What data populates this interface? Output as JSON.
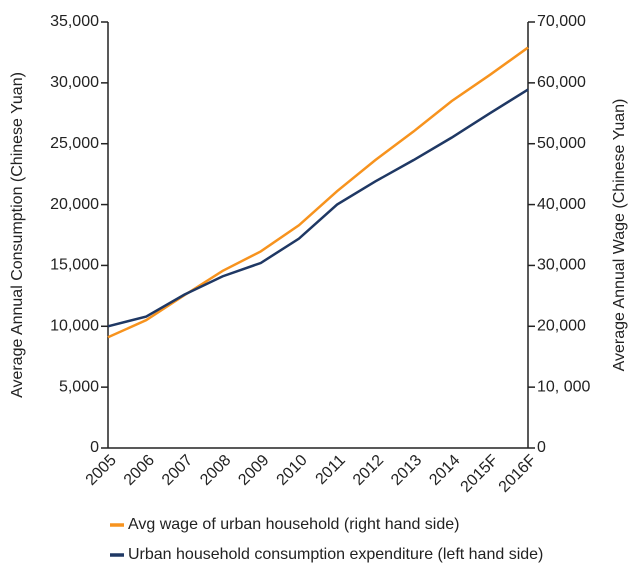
{
  "chart_data": {
    "type": "line",
    "y_label": "Average Annual Consumption (Chinese Yuan)",
    "y2_label": "Average Annual Wage (Chinese Yuan)",
    "categories": [
      "2005",
      "2006",
      "2007",
      "2008",
      "2009",
      "2010",
      "2011",
      "2012",
      "2013",
      "2014",
      "2015F",
      "2016F"
    ],
    "series": [
      {
        "name": "Avg wage of urban household (right hand side)",
        "color": "#f7931e",
        "axis": "y2",
        "values": [
          18200,
          21000,
          25100,
          29100,
          32300,
          36600,
          42200,
          47300,
          52000,
          57000,
          61300,
          65800
        ]
      },
      {
        "name": "Urban household consumption expenditure (left hand side)",
        "color": "#1f3864",
        "values": [
          10000,
          10800,
          12600,
          14100,
          15200,
          17200,
          20000,
          21900,
          23650,
          25500,
          27500,
          29450
        ]
      }
    ],
    "ylim": [
      0,
      35000
    ],
    "yticks": [
      0,
      {
        "value": 5000,
        "label": "5,000"
      },
      {
        "value": 10000,
        "label": "10,000"
      },
      {
        "value": 15000,
        "label": "15,000"
      },
      {
        "value": 20000,
        "label": "20,000"
      },
      {
        "value": 25000,
        "label": "25,000"
      },
      {
        "value": 30000,
        "label": "30,000"
      },
      {
        "value": 35000,
        "label": "35,000"
      }
    ],
    "y2lim": [
      0,
      70000
    ],
    "y2ticks": [
      0,
      {
        "value": 10000,
        "label": "10, 000"
      },
      {
        "value": 20000,
        "label": "20,000"
      },
      {
        "value": 30000,
        "label": "30,000"
      },
      {
        "value": 40000,
        "label": "40,000"
      },
      {
        "value": 50000,
        "label": "50,000"
      },
      {
        "value": 60000,
        "label": "60,000"
      },
      {
        "value": 70000,
        "label": "70,000"
      }
    ],
    "grid": false
  }
}
